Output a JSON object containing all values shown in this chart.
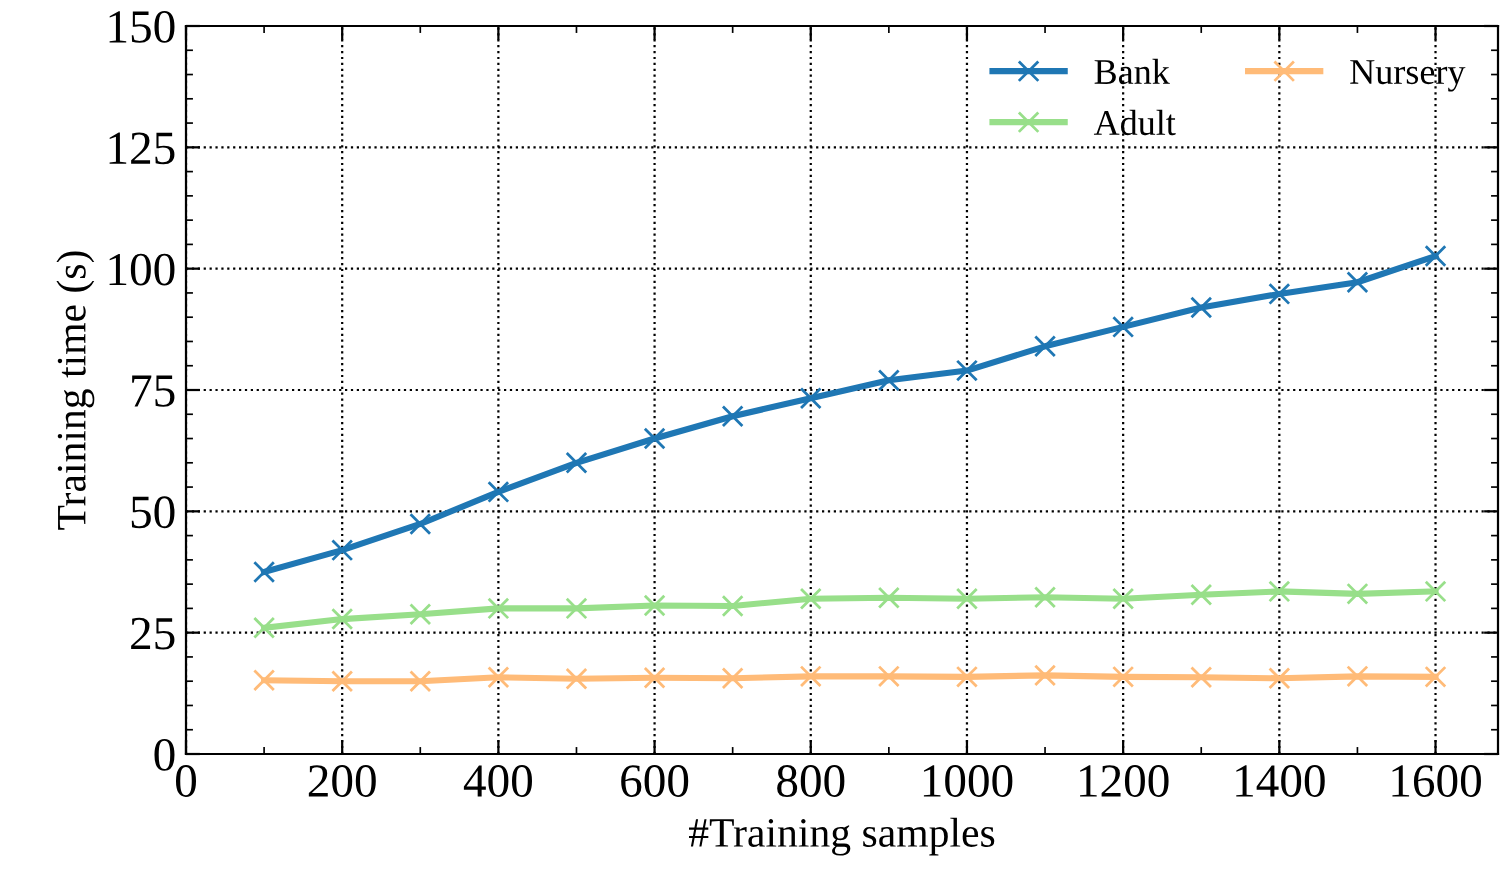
{
  "chart_data": {
    "type": "line",
    "xlabel": "#Training samples",
    "ylabel": "Training time (s)",
    "x": [
      100,
      200,
      300,
      400,
      500,
      600,
      700,
      800,
      900,
      1000,
      1100,
      1200,
      1300,
      1400,
      1500,
      1600
    ],
    "series": [
      {
        "name": "Bank",
        "color": "#1f77b4",
        "values": [
          37.5,
          42,
          47.4,
          54,
          60,
          65,
          69.6,
          73.3,
          77,
          79,
          84,
          88,
          92,
          94.8,
          97.2,
          102.6
        ]
      },
      {
        "name": "Adult",
        "color": "#98df8a",
        "values": [
          26,
          27.8,
          28.8,
          30,
          30,
          30.6,
          30.5,
          32,
          32.2,
          32,
          32.3,
          32,
          32.8,
          33.5,
          33,
          33.5
        ]
      },
      {
        "name": "Nursery",
        "color": "#ffbb78",
        "values": [
          15.2,
          15,
          15,
          15.8,
          15.5,
          15.7,
          15.6,
          16,
          16,
          15.9,
          16.2,
          15.9,
          15.8,
          15.6,
          16,
          15.9
        ]
      }
    ],
    "xlim": [
      0,
      1680
    ],
    "xticks": [
      0,
      200,
      400,
      600,
      800,
      1000,
      1200,
      1400,
      1600
    ],
    "ylim": [
      0,
      150
    ],
    "yticks": [
      0,
      25,
      50,
      75,
      100,
      125,
      150
    ],
    "grid": true,
    "legend": "top right",
    "marker": "cross",
    "line_style": "solid"
  }
}
